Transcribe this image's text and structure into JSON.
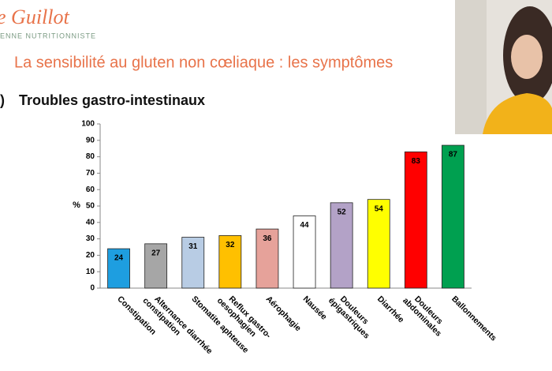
{
  "header": {
    "logo": "e Guillot",
    "logo_sub": "ENNE NUTRITIONNISTE",
    "title": "La sensibilité au gluten non cœliaque : les symptômes",
    "section_marker": ")",
    "section": "Troubles gastro-intestinaux"
  },
  "chart_data": {
    "type": "bar",
    "y_label": "%",
    "categories": [
      "Constipation",
      "Alternance diarrhée\nconstipation",
      "Stomatite aphteuse",
      "Reflux gastro-\noesophagien",
      "Aérophagie",
      "Nausée",
      "Douleurs\népigastriques",
      "Diarrhée",
      "Douleurs\nabdominales",
      "Ballonnements"
    ],
    "values": [
      24,
      27,
      31,
      32,
      36,
      44,
      52,
      54,
      83,
      87
    ],
    "colors": [
      "#1e9ee0",
      "#a6a6a6",
      "#b8cce4",
      "#ffc000",
      "#e6a29a",
      "#ffffff",
      "#b3a2c7",
      "#ffff00",
      "#ff0000",
      "#00a050"
    ],
    "ylim": [
      0,
      100
    ],
    "yticks": [
      0,
      10,
      20,
      30,
      40,
      50,
      60,
      70,
      80,
      90,
      100
    ],
    "grid": false
  }
}
